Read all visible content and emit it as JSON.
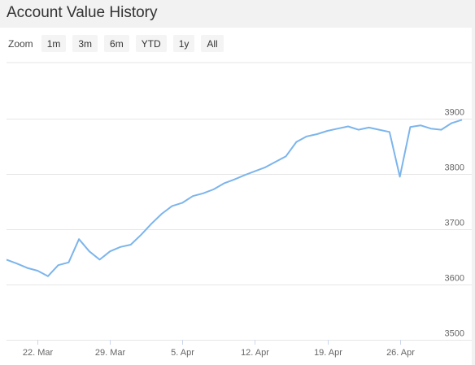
{
  "header": {
    "title": "Account Value History"
  },
  "zoom": {
    "label": "Zoom",
    "buttons": [
      "1m",
      "3m",
      "6m",
      "YTD",
      "1y",
      "All"
    ]
  },
  "colors": {
    "line": "#7cb5ec",
    "grid": "#e6e6e6",
    "panel": "#ffffff",
    "page": "#f2f2f2"
  },
  "chart_data": {
    "type": "line",
    "title": "",
    "xlabel": "",
    "ylabel": "",
    "ylim": [
      3500,
      3900
    ],
    "yticks": [
      3500,
      3600,
      3700,
      3800,
      3900
    ],
    "xticks": [
      {
        "label": "22. Mar",
        "x": "2021-03-22"
      },
      {
        "label": "29. Mar",
        "x": "2021-03-29"
      },
      {
        "label": "5. Apr",
        "x": "2021-04-05"
      },
      {
        "label": "12. Apr",
        "x": "2021-04-12"
      },
      {
        "label": "19. Apr",
        "x": "2021-04-19"
      },
      {
        "label": "26. Apr",
        "x": "2021-04-26"
      }
    ],
    "xlim": [
      "2021-03-19",
      "2021-05-02"
    ],
    "grid": true,
    "legend": "none",
    "series": [
      {
        "values": [
          [
            "2021-03-19",
            3645
          ],
          [
            "2021-03-20",
            3638
          ],
          [
            "2021-03-21",
            3630
          ],
          [
            "2021-03-22",
            3625
          ],
          [
            "2021-03-23",
            3615
          ],
          [
            "2021-03-24",
            3635
          ],
          [
            "2021-03-25",
            3640
          ],
          [
            "2021-03-26",
            3682
          ],
          [
            "2021-03-27",
            3660
          ],
          [
            "2021-03-28",
            3645
          ],
          [
            "2021-03-29",
            3660
          ],
          [
            "2021-03-30",
            3668
          ],
          [
            "2021-03-31",
            3672
          ],
          [
            "2021-04-01",
            3690
          ],
          [
            "2021-04-02",
            3710
          ],
          [
            "2021-04-03",
            3728
          ],
          [
            "2021-04-04",
            3742
          ],
          [
            "2021-04-05",
            3748
          ],
          [
            "2021-04-06",
            3760
          ],
          [
            "2021-04-07",
            3765
          ],
          [
            "2021-04-08",
            3772
          ],
          [
            "2021-04-09",
            3783
          ],
          [
            "2021-04-10",
            3790
          ],
          [
            "2021-04-11",
            3798
          ],
          [
            "2021-04-12",
            3805
          ],
          [
            "2021-04-13",
            3812
          ],
          [
            "2021-04-14",
            3822
          ],
          [
            "2021-04-15",
            3832
          ],
          [
            "2021-04-16",
            3858
          ],
          [
            "2021-04-17",
            3868
          ],
          [
            "2021-04-18",
            3872
          ],
          [
            "2021-04-19",
            3878
          ],
          [
            "2021-04-20",
            3882
          ],
          [
            "2021-04-21",
            3886
          ],
          [
            "2021-04-22",
            3880
          ],
          [
            "2021-04-23",
            3884
          ],
          [
            "2021-04-24",
            3880
          ],
          [
            "2021-04-25",
            3876
          ],
          [
            "2021-04-26",
            3795
          ],
          [
            "2021-04-27",
            3885
          ],
          [
            "2021-04-28",
            3888
          ],
          [
            "2021-04-29",
            3882
          ],
          [
            "2021-04-30",
            3880
          ],
          [
            "2021-05-01",
            3892
          ],
          [
            "2021-05-02",
            3898
          ]
        ]
      }
    ]
  }
}
